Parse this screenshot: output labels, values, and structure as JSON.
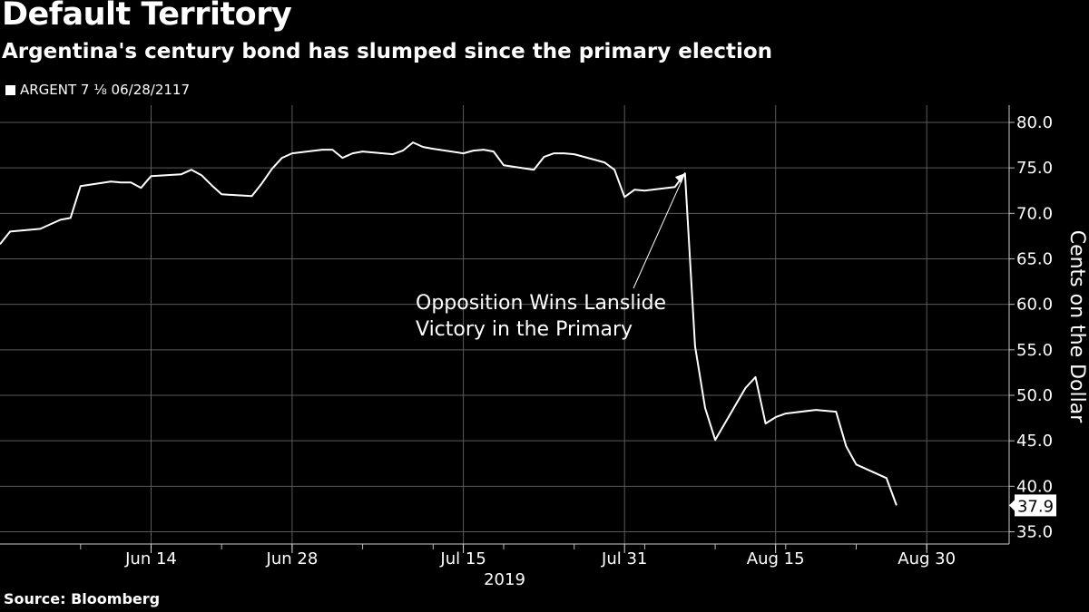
{
  "chart_data": {
    "type": "line",
    "title": "Default Territory",
    "subtitle": "Argentina's century bond has slumped since the primary election",
    "legend": {
      "label": "ARGENT 7 ⅛ 06/28/2117",
      "placement": "top-left",
      "color": "#ffffff"
    },
    "ylabel": "Cents on the Dollar",
    "xlabel_year": "2019",
    "ylim": [
      35.0,
      80.0
    ],
    "y_ticks": [
      "35.0",
      "40.0",
      "45.0",
      "50.0",
      "55.0",
      "60.0",
      "65.0",
      "70.0",
      "75.0",
      "80.0"
    ],
    "x_ticks": [
      {
        "date": "2019-06-14",
        "label": "Jun 14"
      },
      {
        "date": "2019-06-28",
        "label": "Jun 28"
      },
      {
        "date": "2019-07-15",
        "label": "Jul 15"
      },
      {
        "date": "2019-07-31",
        "label": "Jul 31"
      },
      {
        "date": "2019-08-15",
        "label": "Aug 15"
      },
      {
        "date": "2019-08-30",
        "label": "Aug 30"
      }
    ],
    "grid": true,
    "last_value_label": "37.9",
    "annotation": {
      "text_lines": [
        "Opposition Wins Lanslide",
        "Victory in the Primary"
      ],
      "date": "2019-08-09",
      "value": 74.4
    },
    "series": [
      {
        "name": "ARGENT 7 ⅛ 06/28/2117",
        "color": "#ffffff",
        "points": [
          [
            "2019-05-30",
            66.6
          ],
          [
            "2019-05-31",
            68.0
          ],
          [
            "2019-06-03",
            68.3
          ],
          [
            "2019-06-04",
            68.8
          ],
          [
            "2019-06-05",
            69.3
          ],
          [
            "2019-06-06",
            69.5
          ],
          [
            "2019-06-07",
            73.0
          ],
          [
            "2019-06-10",
            73.5
          ],
          [
            "2019-06-11",
            73.4
          ],
          [
            "2019-06-12",
            73.4
          ],
          [
            "2019-06-13",
            72.8
          ],
          [
            "2019-06-14",
            74.1
          ],
          [
            "2019-06-17",
            74.3
          ],
          [
            "2019-06-18",
            74.8
          ],
          [
            "2019-06-19",
            74.2
          ],
          [
            "2019-06-20",
            73.1
          ],
          [
            "2019-06-21",
            72.1
          ],
          [
            "2019-06-24",
            71.9
          ],
          [
            "2019-06-25",
            73.3
          ],
          [
            "2019-06-26",
            74.9
          ],
          [
            "2019-06-27",
            76.1
          ],
          [
            "2019-06-28",
            76.6
          ],
          [
            "2019-07-01",
            77.0
          ],
          [
            "2019-07-02",
            77.0
          ],
          [
            "2019-07-03",
            76.1
          ],
          [
            "2019-07-04",
            76.6
          ],
          [
            "2019-07-05",
            76.8
          ],
          [
            "2019-07-08",
            76.5
          ],
          [
            "2019-07-09",
            76.9
          ],
          [
            "2019-07-10",
            77.8
          ],
          [
            "2019-07-11",
            77.3
          ],
          [
            "2019-07-12",
            77.1
          ],
          [
            "2019-07-15",
            76.6
          ],
          [
            "2019-07-16",
            76.9
          ],
          [
            "2019-07-17",
            77.0
          ],
          [
            "2019-07-18",
            76.8
          ],
          [
            "2019-07-19",
            75.3
          ],
          [
            "2019-07-22",
            74.8
          ],
          [
            "2019-07-23",
            76.2
          ],
          [
            "2019-07-24",
            76.6
          ],
          [
            "2019-07-25",
            76.6
          ],
          [
            "2019-07-26",
            76.5
          ],
          [
            "2019-07-29",
            75.6
          ],
          [
            "2019-07-30",
            74.8
          ],
          [
            "2019-07-31",
            71.8
          ],
          [
            "2019-08-01",
            72.6
          ],
          [
            "2019-08-02",
            72.5
          ],
          [
            "2019-08-05",
            72.9
          ],
          [
            "2019-08-06",
            74.4
          ],
          [
            "2019-08-07",
            55.4
          ],
          [
            "2019-08-08",
            48.6
          ],
          [
            "2019-08-09",
            45.1
          ],
          [
            "2019-08-12",
            50.8
          ],
          [
            "2019-08-13",
            52.0
          ],
          [
            "2019-08-14",
            46.9
          ],
          [
            "2019-08-15",
            47.6
          ],
          [
            "2019-08-16",
            48.0
          ],
          [
            "2019-08-19",
            48.4
          ],
          [
            "2019-08-20",
            48.3
          ],
          [
            "2019-08-21",
            48.2
          ],
          [
            "2019-08-22",
            44.4
          ],
          [
            "2019-08-23",
            42.4
          ],
          [
            "2019-08-26",
            40.9
          ],
          [
            "2019-08-27",
            37.9
          ]
        ]
      }
    ]
  },
  "source": "Source: Bloomberg"
}
